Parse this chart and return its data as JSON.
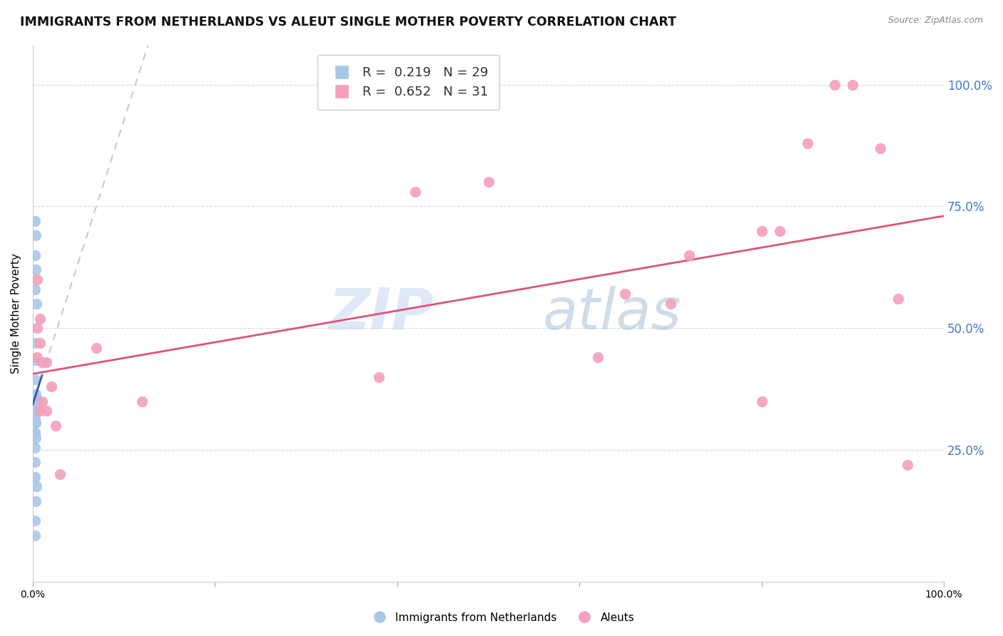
{
  "title": "IMMIGRANTS FROM NETHERLANDS VS ALEUT SINGLE MOTHER POVERTY CORRELATION CHART",
  "source": "Source: ZipAtlas.com",
  "ylabel": "Single Mother Poverty",
  "right_yticks": [
    "100.0%",
    "75.0%",
    "50.0%",
    "25.0%"
  ],
  "right_ytick_vals": [
    1.0,
    0.75,
    0.5,
    0.25
  ],
  "legend_blue_r": "0.219",
  "legend_blue_n": "29",
  "legend_pink_r": "0.652",
  "legend_pink_n": "31",
  "blue_color": "#a8c8e8",
  "blue_line_color": "#3355aa",
  "blue_dash_color": "#bbccdd",
  "pink_color": "#f4a0b8",
  "pink_line_color": "#dd5577",
  "watermark_zip": "ZIP",
  "watermark_atlas": "atlas",
  "blue_points_x": [
    0.002,
    0.003,
    0.002,
    0.003,
    0.002,
    0.004,
    0.003,
    0.002,
    0.002,
    0.003,
    0.004,
    0.005,
    0.004,
    0.005,
    0.003,
    0.002,
    0.002,
    0.002,
    0.003,
    0.002,
    0.002,
    0.003,
    0.002,
    0.002,
    0.002,
    0.004,
    0.003,
    0.002,
    0.002
  ],
  "blue_points_y": [
    0.72,
    0.69,
    0.65,
    0.62,
    0.58,
    0.55,
    0.47,
    0.435,
    0.395,
    0.365,
    0.355,
    0.345,
    0.335,
    0.335,
    0.335,
    0.325,
    0.315,
    0.305,
    0.305,
    0.285,
    0.285,
    0.275,
    0.255,
    0.225,
    0.195,
    0.175,
    0.145,
    0.105,
    0.075
  ],
  "pink_points_x": [
    0.005,
    0.005,
    0.005,
    0.008,
    0.008,
    0.008,
    0.01,
    0.01,
    0.015,
    0.015,
    0.02,
    0.025,
    0.03,
    0.07,
    0.12,
    0.38,
    0.42,
    0.5,
    0.62,
    0.65,
    0.7,
    0.72,
    0.8,
    0.8,
    0.82,
    0.85,
    0.88,
    0.9,
    0.93,
    0.95,
    0.96
  ],
  "pink_points_y": [
    0.6,
    0.5,
    0.44,
    0.52,
    0.47,
    0.33,
    0.43,
    0.35,
    0.43,
    0.33,
    0.38,
    0.3,
    0.2,
    0.46,
    0.35,
    0.4,
    0.78,
    0.8,
    0.44,
    0.57,
    0.55,
    0.65,
    0.7,
    0.35,
    0.7,
    0.88,
    1.0,
    1.0,
    0.87,
    0.56,
    0.22
  ],
  "xlim": [
    0,
    1.0
  ],
  "ylim": [
    -0.02,
    1.08
  ],
  "grid_color": "#d8d8d8",
  "background_color": "#ffffff",
  "title_fontsize": 12.5,
  "axis_label_fontsize": 11,
  "tick_fontsize": 10,
  "legend_fontsize": 13
}
